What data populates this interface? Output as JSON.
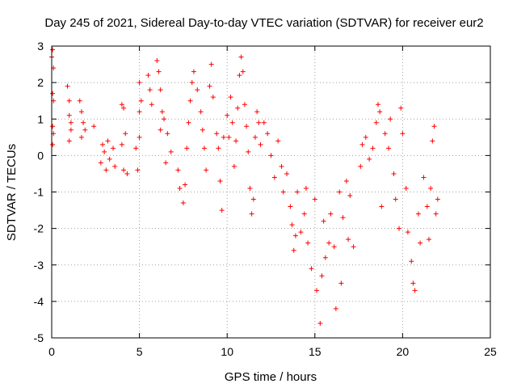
{
  "chart_data": {
    "type": "scatter",
    "title": "Day 245 of 2021, Sidereal Day-to-day VTEC variation (SDTVAR) for receiver eur2",
    "xlabel": "GPS time / hours",
    "ylabel": "SDTVAR / TECUs",
    "xlim": [
      0,
      25
    ],
    "ylim": [
      -5,
      3
    ],
    "xticks": [
      "0",
      "5",
      "10",
      "15",
      "20",
      "25"
    ],
    "yticks": [
      "3",
      "2",
      "1",
      "0",
      "-1",
      "-2",
      "-3",
      "-4",
      "-5"
    ],
    "grid": true,
    "marker": "+",
    "color": "#ff0000",
    "series": [
      {
        "name": "SDTVAR",
        "points": [
          [
            0.0,
            2.7
          ],
          [
            0.05,
            2.9
          ],
          [
            0.1,
            2.4
          ],
          [
            0.05,
            1.7
          ],
          [
            0.1,
            1.5
          ],
          [
            0.05,
            0.8
          ],
          [
            0.1,
            0.6
          ],
          [
            0.05,
            0.3
          ],
          [
            0.9,
            1.9
          ],
          [
            1.0,
            1.5
          ],
          [
            1.0,
            1.1
          ],
          [
            1.1,
            0.7
          ],
          [
            1.0,
            0.4
          ],
          [
            1.1,
            0.9
          ],
          [
            1.6,
            1.5
          ],
          [
            1.7,
            1.2
          ],
          [
            1.8,
            0.9
          ],
          [
            1.7,
            0.5
          ],
          [
            1.9,
            0.7
          ],
          [
            2.4,
            0.8
          ],
          [
            2.8,
            -0.2
          ],
          [
            2.9,
            0.3
          ],
          [
            3.0,
            0.1
          ],
          [
            3.1,
            -0.4
          ],
          [
            3.2,
            0.4
          ],
          [
            3.3,
            -0.1
          ],
          [
            3.5,
            0.2
          ],
          [
            3.6,
            -0.3
          ],
          [
            4.0,
            1.4
          ],
          [
            4.1,
            1.3
          ],
          [
            4.0,
            0.3
          ],
          [
            4.1,
            -0.4
          ],
          [
            4.2,
            0.6
          ],
          [
            4.3,
            -0.5
          ],
          [
            4.8,
            0.2
          ],
          [
            4.9,
            -0.4
          ],
          [
            5.0,
            0.5
          ],
          [
            5.0,
            1.2
          ],
          [
            5.1,
            1.5
          ],
          [
            5.0,
            2.0
          ],
          [
            5.5,
            2.2
          ],
          [
            5.6,
            1.8
          ],
          [
            5.7,
            1.4
          ],
          [
            6.0,
            2.6
          ],
          [
            6.1,
            2.3
          ],
          [
            6.2,
            1.8
          ],
          [
            6.3,
            1.2
          ],
          [
            6.2,
            0.7
          ],
          [
            6.4,
            1.0
          ],
          [
            6.6,
            0.6
          ],
          [
            6.5,
            -0.2
          ],
          [
            6.8,
            0.1
          ],
          [
            7.2,
            -0.4
          ],
          [
            7.3,
            -0.9
          ],
          [
            7.5,
            -1.3
          ],
          [
            7.6,
            -0.8
          ],
          [
            7.7,
            0.2
          ],
          [
            7.8,
            0.9
          ],
          [
            7.9,
            1.5
          ],
          [
            8.0,
            2.0
          ],
          [
            8.1,
            2.3
          ],
          [
            8.3,
            1.8
          ],
          [
            8.5,
            1.2
          ],
          [
            8.6,
            0.7
          ],
          [
            8.7,
            0.2
          ],
          [
            8.8,
            -0.4
          ],
          [
            9.0,
            1.9
          ],
          [
            9.1,
            2.5
          ],
          [
            9.2,
            1.6
          ],
          [
            9.4,
            0.6
          ],
          [
            9.5,
            0.2
          ],
          [
            9.6,
            -0.7
          ],
          [
            9.7,
            -1.5
          ],
          [
            9.8,
            0.5
          ],
          [
            10.0,
            1.1
          ],
          [
            10.1,
            0.5
          ],
          [
            10.2,
            1.6
          ],
          [
            10.3,
            0.9
          ],
          [
            10.4,
            -0.3
          ],
          [
            10.5,
            0.4
          ],
          [
            10.6,
            1.3
          ],
          [
            10.7,
            2.2
          ],
          [
            10.8,
            2.7
          ],
          [
            10.9,
            2.3
          ],
          [
            11.0,
            1.4
          ],
          [
            11.1,
            0.8
          ],
          [
            11.2,
            0.1
          ],
          [
            11.3,
            -0.9
          ],
          [
            11.4,
            -1.6
          ],
          [
            11.5,
            -1.2
          ],
          [
            11.6,
            0.5
          ],
          [
            11.7,
            1.2
          ],
          [
            11.8,
            0.9
          ],
          [
            11.9,
            0.3
          ],
          [
            12.1,
            0.9
          ],
          [
            12.3,
            0.6
          ],
          [
            12.5,
            0.0
          ],
          [
            12.7,
            -0.6
          ],
          [
            12.9,
            0.4
          ],
          [
            13.1,
            -0.3
          ],
          [
            13.2,
            -1.0
          ],
          [
            13.4,
            -0.5
          ],
          [
            13.6,
            -1.4
          ],
          [
            13.7,
            -1.9
          ],
          [
            13.8,
            -2.6
          ],
          [
            13.9,
            -2.2
          ],
          [
            14.0,
            -1.0
          ],
          [
            14.2,
            -2.1
          ],
          [
            14.4,
            -1.6
          ],
          [
            14.5,
            -0.9
          ],
          [
            14.6,
            -2.4
          ],
          [
            14.8,
            -3.1
          ],
          [
            15.0,
            -1.2
          ],
          [
            15.1,
            -3.7
          ],
          [
            15.3,
            -4.6
          ],
          [
            15.4,
            -3.3
          ],
          [
            15.5,
            -1.8
          ],
          [
            15.6,
            -2.8
          ],
          [
            15.8,
            -2.4
          ],
          [
            15.9,
            -1.6
          ],
          [
            16.1,
            -2.5
          ],
          [
            16.2,
            -4.2
          ],
          [
            16.4,
            -1.0
          ],
          [
            16.5,
            -3.5
          ],
          [
            16.6,
            -1.7
          ],
          [
            16.8,
            -0.7
          ],
          [
            16.9,
            -2.3
          ],
          [
            17.0,
            -1.1
          ],
          [
            17.2,
            -2.5
          ],
          [
            17.6,
            -0.3
          ],
          [
            17.7,
            0.3
          ],
          [
            17.9,
            0.5
          ],
          [
            18.1,
            -0.1
          ],
          [
            18.3,
            0.2
          ],
          [
            18.5,
            0.9
          ],
          [
            18.6,
            1.4
          ],
          [
            18.7,
            1.2
          ],
          [
            18.8,
            -1.4
          ],
          [
            19.0,
            0.6
          ],
          [
            19.2,
            0.2
          ],
          [
            19.3,
            1.0
          ],
          [
            19.5,
            -0.5
          ],
          [
            19.6,
            -1.2
          ],
          [
            19.8,
            -2.0
          ],
          [
            19.9,
            1.3
          ],
          [
            20.0,
            0.6
          ],
          [
            20.2,
            -0.9
          ],
          [
            20.3,
            -2.1
          ],
          [
            20.5,
            -2.9
          ],
          [
            20.6,
            -3.5
          ],
          [
            20.7,
            -3.7
          ],
          [
            20.9,
            -1.6
          ],
          [
            21.0,
            -2.4
          ],
          [
            21.2,
            -0.6
          ],
          [
            21.4,
            -1.4
          ],
          [
            21.5,
            -2.3
          ],
          [
            21.6,
            -0.9
          ],
          [
            21.7,
            0.4
          ],
          [
            21.8,
            0.8
          ],
          [
            21.9,
            -1.6
          ],
          [
            22.0,
            -1.2
          ]
        ]
      }
    ]
  }
}
